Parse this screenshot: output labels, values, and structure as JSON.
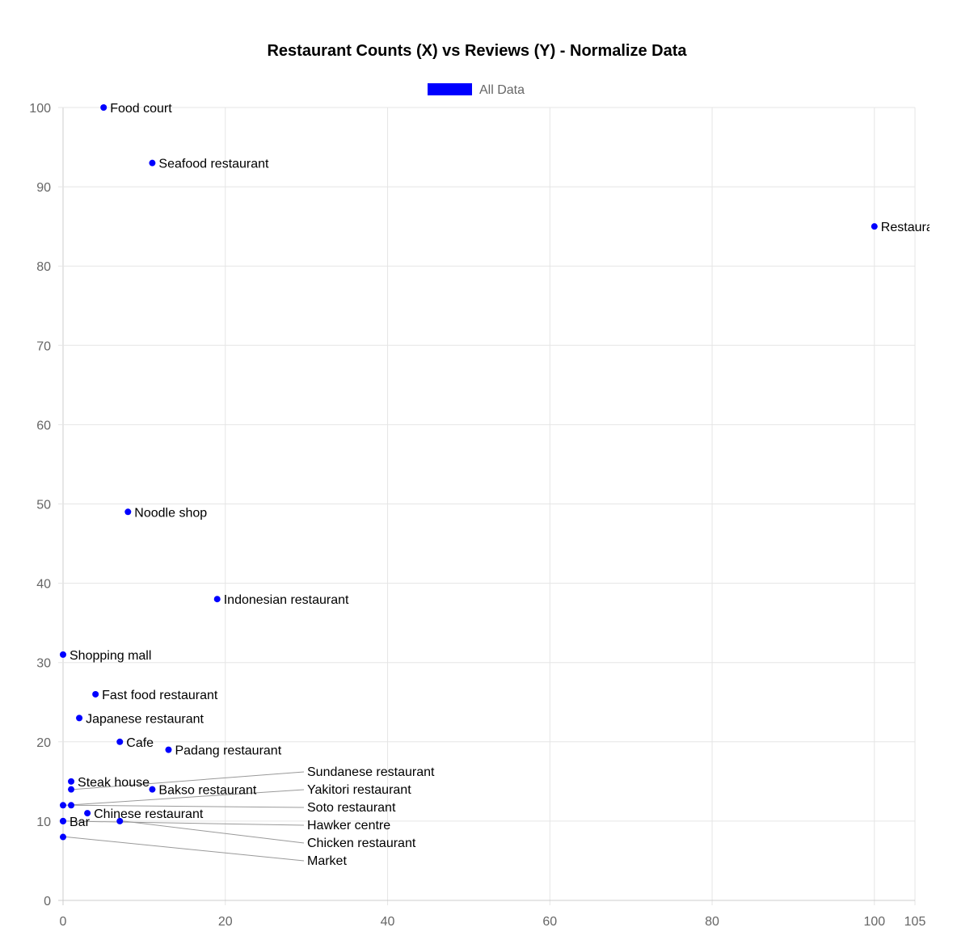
{
  "chart_data": {
    "type": "scatter",
    "title": "Restaurant Counts (X) vs Reviews (Y) - Normalize Data",
    "legend": {
      "label": "All Data",
      "placement": "top",
      "color": "#0000ff"
    },
    "xlim": [
      0,
      105
    ],
    "ylim": [
      0,
      100
    ],
    "xticks": [
      0,
      20,
      40,
      60,
      80,
      100,
      105
    ],
    "yticks": [
      0,
      10,
      20,
      30,
      40,
      50,
      60,
      70,
      80,
      90,
      100
    ],
    "grid": true,
    "point_color": "#0000ff",
    "points": [
      {
        "label": "Food court",
        "x": 5,
        "y": 100
      },
      {
        "label": "Seafood restaurant",
        "x": 11,
        "y": 93
      },
      {
        "label": "Restaurant",
        "x": 100,
        "y": 85
      },
      {
        "label": "Noodle shop",
        "x": 8,
        "y": 49
      },
      {
        "label": "Indonesian restaurant",
        "x": 19,
        "y": 38
      },
      {
        "label": "Shopping mall",
        "x": 0,
        "y": 31
      },
      {
        "label": "Fast food restaurant",
        "x": 4,
        "y": 26
      },
      {
        "label": "Japanese restaurant",
        "x": 2,
        "y": 23
      },
      {
        "label": "Cafe",
        "x": 7,
        "y": 20
      },
      {
        "label": "Padang restaurant",
        "x": 13,
        "y": 19
      },
      {
        "label": "Steak house",
        "x": 1,
        "y": 15
      },
      {
        "label": "Sundanese restaurant",
        "x": 1,
        "y": 14
      },
      {
        "label": "Bakso restaurant",
        "x": 11,
        "y": 14
      },
      {
        "label": "Yakitori restaurant",
        "x": 0,
        "y": 12
      },
      {
        "label": "Soto restaurant",
        "x": 1,
        "y": 12
      },
      {
        "label": "Chinese restaurant",
        "x": 3,
        "y": 11
      },
      {
        "label": "Bar",
        "x": 0,
        "y": 10
      },
      {
        "label": "Hawker centre",
        "x": 0,
        "y": 10
      },
      {
        "label": "Chicken restaurant",
        "x": 7,
        "y": 10
      },
      {
        "label": "Market",
        "x": 0,
        "y": 8
      }
    ]
  }
}
